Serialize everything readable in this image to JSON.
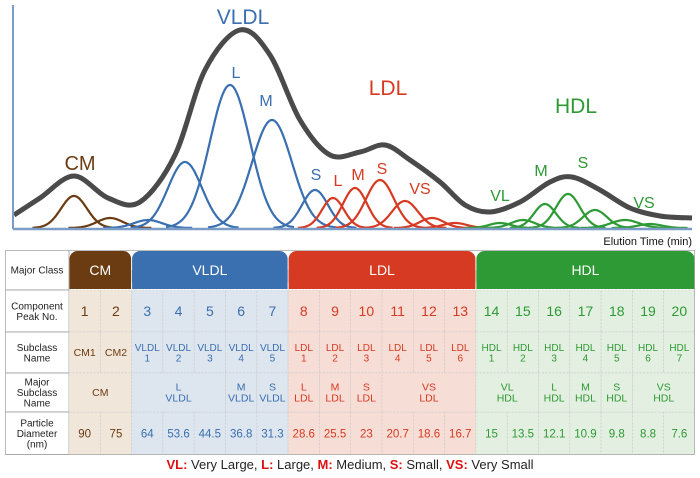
{
  "chart_labels": {
    "cm": "CM",
    "vldl": "VLDL",
    "vldl_l": "L",
    "vldl_m": "M",
    "ldl": "LDL",
    "hdl": "HDL",
    "s_vldl": "S",
    "l_ldl": "L",
    "m_ldl": "M",
    "s_ldl": "S",
    "vs_ldl": "VS",
    "vl_hdl": "VL",
    "m_hdl": "M",
    "s_hdl": "S",
    "vs_hdl": "VS",
    "xlabel": "Elution  Time  (min)"
  },
  "colors": {
    "cm": "#6b3b12",
    "vldl": "#3a6fb0",
    "ldl": "#d63a22",
    "hdl": "#2e9a35",
    "total": "#4a4a4a",
    "axis": "#7a9cc6"
  },
  "table": {
    "row_headers": [
      "Major Class",
      "Component\nPeak No.",
      "Subclass\nName",
      "Major\nSubclass\nName",
      "Particle\nDiameter\n(nm)"
    ],
    "classes": [
      {
        "name": "CM",
        "span": 2
      },
      {
        "name": "VLDL",
        "span": 5
      },
      {
        "name": "LDL",
        "span": 6
      },
      {
        "name": "HDL",
        "span": 7
      }
    ],
    "peaks": [
      "1",
      "2",
      "3",
      "4",
      "5",
      "6",
      "7",
      "8",
      "9",
      "10",
      "11",
      "12",
      "13",
      "14",
      "15",
      "16",
      "17",
      "18",
      "19",
      "20"
    ],
    "subclass_names": [
      "CM1",
      "CM2",
      "VLDL\n1",
      "VLDL\n2",
      "VLDL\n3",
      "VLDL\n4",
      "VLDL\n5",
      "LDL\n1",
      "LDL\n2",
      "LDL\n3",
      "LDL\n4",
      "LDL\n5",
      "LDL\n6",
      "HDL\n1",
      "HDL\n2",
      "HDL\n3",
      "HDL\n4",
      "HDL\n5",
      "HDL\n6",
      "HDL\n7"
    ],
    "major_subclass": [
      {
        "label": "CM",
        "span": 2
      },
      {
        "label": "L\nVLDL",
        "span": 3
      },
      {
        "label": "M\nVLDL",
        "span": 1
      },
      {
        "label": "S\nVLDL",
        "span": 1
      },
      {
        "label": "L\nLDL",
        "span": 1
      },
      {
        "label": "M\nLDL",
        "span": 1
      },
      {
        "label": "S\nLDL",
        "span": 1
      },
      {
        "label": "VS\nLDL",
        "span": 3
      },
      {
        "label": "VL\nHDL",
        "span": 2
      },
      {
        "label": "L\nHDL",
        "span": 1
      },
      {
        "label": "M\nHDL",
        "span": 1
      },
      {
        "label": "S\nHDL",
        "span": 1
      },
      {
        "label": "VS\nHDL",
        "span": 2
      }
    ],
    "diameters": [
      "90",
      "75",
      "64",
      "53.6",
      "44.5",
      "36.8",
      "31.3",
      "28.6",
      "25.5",
      "23",
      "20.7",
      "18.6",
      "16.7",
      "15",
      "13.5",
      "12.1",
      "10.9",
      "9.8",
      "8.8",
      "7.6"
    ]
  },
  "legend": [
    {
      "key": "VL:",
      "text": " Very Large, "
    },
    {
      "key": "L:",
      "text": " Large, "
    },
    {
      "key": "M:",
      "text": " Medium, "
    },
    {
      "key": "S:",
      "text": " Small, "
    },
    {
      "key": "VS:",
      "text": " Very Small"
    }
  ]
}
